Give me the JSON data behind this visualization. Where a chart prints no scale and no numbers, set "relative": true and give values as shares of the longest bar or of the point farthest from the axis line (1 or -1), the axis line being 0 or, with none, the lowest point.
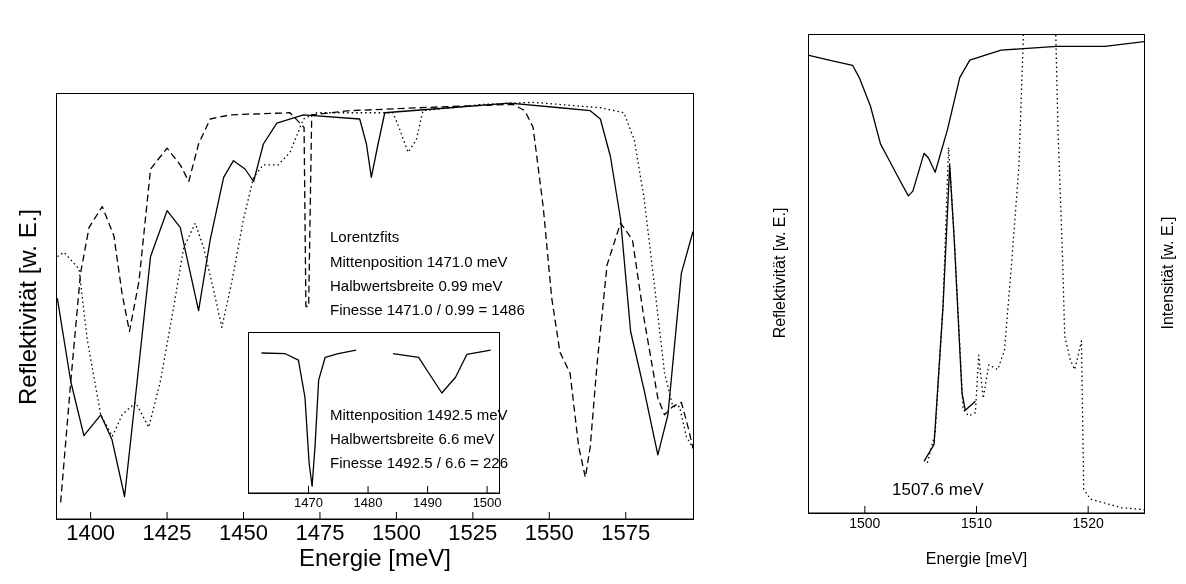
{
  "chart_data": [
    {
      "type": "line",
      "relative": true,
      "xlabel": "Energie [meV]",
      "ylabel": "Reflektivität [w. E.]",
      "xlim": [
        1389,
        1597
      ],
      "xticks": [
        1400,
        1425,
        1450,
        1475,
        1500,
        1525,
        1550,
        1575
      ],
      "tick_labels": "x",
      "annotations": [
        "Lorentzfits",
        "Mittenposition 1471.0 meV",
        "Halbwertsbreite 0.99 meV",
        "Finesse 1471.0 / 0.99 = 1486"
      ],
      "series": [
        {
          "color": "#000000",
          "line_style": "solid",
          "x": [
            1389.1,
            1393.5,
            1397.8,
            1403.3,
            1407,
            1411.1,
            1415.2,
            1419.6,
            1425,
            1429.3,
            1432.6,
            1435.3,
            1439.1,
            1443.5,
            1446.7,
            1450.5,
            1453.3,
            1456.5,
            1460.9,
            1469.6,
            1488,
            1490.2,
            1491.8,
            1494,
            1496.2,
            1517.4,
            1537,
            1553.5,
            1563.4,
            1566.7,
            1570,
            1573.3,
            1576.6,
            1581,
            1585.5,
            1588.8,
            1593.2,
            1597
          ],
          "values": [
            0.53,
            0.33,
            0.2,
            0.25,
            0.19,
            0.054,
            0.33,
            0.63,
            0.74,
            0.7,
            0.59,
            0.5,
            0.67,
            0.82,
            0.86,
            0.84,
            0.81,
            0.9,
            0.95,
            0.97,
            0.96,
            0.9,
            0.82,
            0.9,
            0.975,
            0.987,
            0.998,
            0.987,
            0.98,
            0.96,
            0.87,
            0.72,
            0.45,
            0.31,
            0.154,
            0.25,
            0.59,
            0.69
          ]
        },
        {
          "color": "#000000",
          "line_style": "dashed",
          "x": [
            1390.2,
            1393.5,
            1396.7,
            1399.5,
            1403.8,
            1407.6,
            1410.3,
            1412.7,
            1415.8,
            1419.6,
            1425,
            1429.3,
            1432.1,
            1435.3,
            1439.1,
            1445.7,
            1465.2,
            1469.8,
            1470.4,
            1471.3,
            1472.3,
            1484.8,
            1517.4,
            1538.1,
            1542,
            1544.7,
            1548,
            1550.8,
            1553.5,
            1556.8,
            1559.6,
            1561.8,
            1563.4,
            1565.6,
            1568.9,
            1573.3,
            1577.2,
            1581,
            1585.5,
            1587.7,
            1590.4,
            1593.2,
            1595.4,
            1597
          ],
          "values": [
            0.04,
            0.33,
            0.59,
            0.7,
            0.75,
            0.68,
            0.54,
            0.45,
            0.57,
            0.84,
            0.89,
            0.85,
            0.81,
            0.9,
            0.96,
            0.97,
            0.975,
            0.94,
            0.51,
            0.51,
            0.97,
            0.98,
            0.99,
            0.995,
            0.98,
            0.94,
            0.75,
            0.53,
            0.4,
            0.35,
            0.174,
            0.1,
            0.174,
            0.37,
            0.61,
            0.71,
            0.67,
            0.48,
            0.29,
            0.25,
            0.27,
            0.28,
            0.22,
            0.17
          ]
        },
        {
          "color": "#000000",
          "line_style": "dotted",
          "x": [
            1389.1,
            1391.3,
            1396.2,
            1398.9,
            1403.3,
            1407.1,
            1410.3,
            1414.7,
            1419,
            1422.8,
            1427.2,
            1430.4,
            1434.2,
            1437,
            1440.2,
            1442.9,
            1446.2,
            1450,
            1453.3,
            1456.5,
            1461.4,
            1465.2,
            1469.6,
            1473.9,
            1498.9,
            1501.1,
            1503.8,
            1506.5,
            1508.7,
            1528.3,
            1544.7,
            1566.7,
            1574.4,
            1577.8,
            1581,
            1584.4,
            1587.7,
            1590.4,
            1592.6,
            1594.8,
            1597
          ],
          "values": [
            0.63,
            0.64,
            0.6,
            0.43,
            0.25,
            0.198,
            0.25,
            0.28,
            0.22,
            0.33,
            0.51,
            0.65,
            0.71,
            0.65,
            0.55,
            0.46,
            0.57,
            0.72,
            0.82,
            0.85,
            0.85,
            0.88,
            0.96,
            0.975,
            0.975,
            0.935,
            0.88,
            0.91,
            0.98,
            0.995,
            1.0,
            0.987,
            0.975,
            0.91,
            0.77,
            0.56,
            0.35,
            0.27,
            0.27,
            0.198,
            0.17
          ]
        }
      ]
    },
    {
      "type": "line",
      "relative": true,
      "xlim": [
        1460,
        1502
      ],
      "xticks": [
        1470,
        1480,
        1490,
        1500
      ],
      "tick_labels": "x",
      "annotations": [
        "Mittenposition 1492.5 meV",
        "Halbwertsbreite 6.6 meV",
        "Finesse 1492.5 / 6.6 = 226"
      ],
      "series": [
        {
          "color": "#000000",
          "line_style": "solid",
          "x": [
            1462.1,
            1466.1,
            1468.3,
            1469.4,
            1470.1,
            1470.6,
            1471.1,
            1471.7,
            1472.8,
            1475,
            1478,
            1481,
            1484.2,
            1488.5,
            1490.2,
            1492.4,
            1494.7,
            1496.6,
            1500.6
          ],
          "values": [
            0.98,
            0.975,
            0.93,
            0.67,
            0.21,
            0.047,
            0.33,
            0.79,
            0.95,
            0.975,
            1.0,
            null,
            0.975,
            0.95,
            0.84,
            0.7,
            0.81,
            0.97,
            1.0
          ]
        }
      ]
    },
    {
      "type": "line",
      "relative": true,
      "xlabel": "Energie [meV]",
      "ylabel": "Reflektivität [w. E.]",
      "y2label": "Intensität [w. E.]",
      "xlim": [
        1495,
        1525
      ],
      "xticks": [
        1500,
        1510,
        1520
      ],
      "tick_labels": "x",
      "annotations": [
        "1507.6 meV"
      ],
      "series": [
        {
          "color": "#000000",
          "line_style": "solid",
          "x": [
            1495,
            1496.8,
            1498.9,
            1499.5,
            1500.5,
            1501.4,
            1502.3,
            1503.2,
            1503.9,
            1504.3,
            1505.3,
            1505.7,
            1506.3,
            1507.4,
            1508.5,
            1509.4,
            1512.2,
            1517.2,
            1521.5,
            1525
          ],
          "values": [
            0.967,
            0.957,
            0.946,
            0.92,
            0.86,
            0.78,
            0.74,
            0.7,
            0.67,
            0.68,
            0.76,
            0.75,
            0.72,
            0.81,
            0.92,
            0.957,
            0.978,
            0.986,
            0.986,
            0.996
          ]
        },
        {
          "color": "#000000",
          "line_style": "solid",
          "x": [
            1505.3,
            1506.2,
            1507,
            1507.6,
            1508,
            1508.7,
            1509,
            1509.9
          ],
          "values": [
            0.109,
            0.145,
            0.435,
            0.735,
            0.58,
            0.254,
            0.217,
            0.236
          ]
        },
        {
          "color": "#000000",
          "line_style": "dotted",
          "axis": "y2",
          "x": [
            1505.6,
            1506.3,
            1507,
            1507.5,
            1508,
            1508.8,
            1509.3,
            1509.9,
            1510.2,
            1510.6,
            1511.1,
            1511.9,
            1512.5,
            1513.1,
            1513.8,
            1514.2,
            1515.7,
            1517.1,
            1517.3,
            1517.7,
            1517.9,
            1518.4,
            1518.8,
            1519.4,
            1519.6,
            1520.2,
            1523,
            1525
          ],
          "values": [
            0.105,
            0.167,
            0.435,
            0.765,
            0.58,
            0.217,
            0.203,
            0.21,
            0.33,
            0.24,
            0.31,
            0.3,
            0.34,
            0.51,
            0.725,
            1.0,
            null,
            1.0,
            0.8,
            0.54,
            0.37,
            0.32,
            0.3,
            0.36,
            0.05,
            0.029,
            0.011,
            0.007
          ]
        }
      ]
    }
  ]
}
